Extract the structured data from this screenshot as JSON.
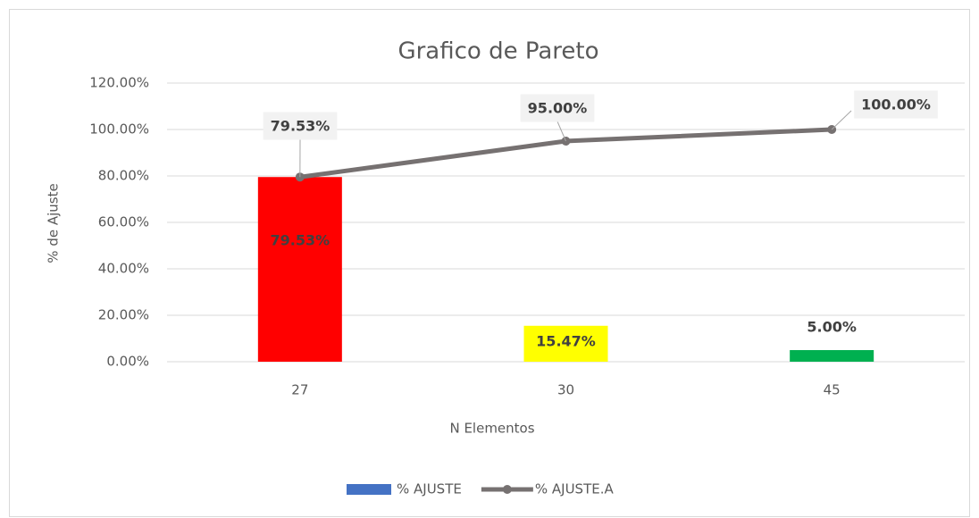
{
  "chart_data": {
    "type": "bar",
    "title": "Grafico de Pareto",
    "x_label": "N Elementos",
    "y_label": "% de Ajuste",
    "categories": [
      "27",
      "30",
      "45"
    ],
    "series": [
      {
        "name": "% AJUSTE",
        "type": "bar",
        "color": "#4472c4",
        "colors": [
          "#ff0000",
          "#ffff00",
          "#00b050"
        ],
        "values": [
          79.53,
          15.47,
          5.0
        ],
        "value_labels": [
          "79.53%",
          "15.47%",
          "5.00%"
        ]
      },
      {
        "name": "% AJUSTE.A",
        "type": "line",
        "color": "#767171",
        "values": [
          79.53,
          95.0,
          100.0
        ],
        "value_labels": [
          "79.53%",
          "95.00%",
          "100.00%"
        ]
      }
    ],
    "ylim": [
      0,
      120
    ],
    "yticks": [
      {
        "value": 0,
        "label": "0.00%"
      },
      {
        "value": 20,
        "label": "20.00%"
      },
      {
        "value": 40,
        "label": "40.00%"
      },
      {
        "value": 60,
        "label": "60.00%"
      },
      {
        "value": 80,
        "label": "80.00%"
      },
      {
        "value": 100,
        "label": "100.00%"
      },
      {
        "value": 120,
        "label": "120.00%"
      }
    ],
    "grid": true,
    "legend": "bottom"
  }
}
